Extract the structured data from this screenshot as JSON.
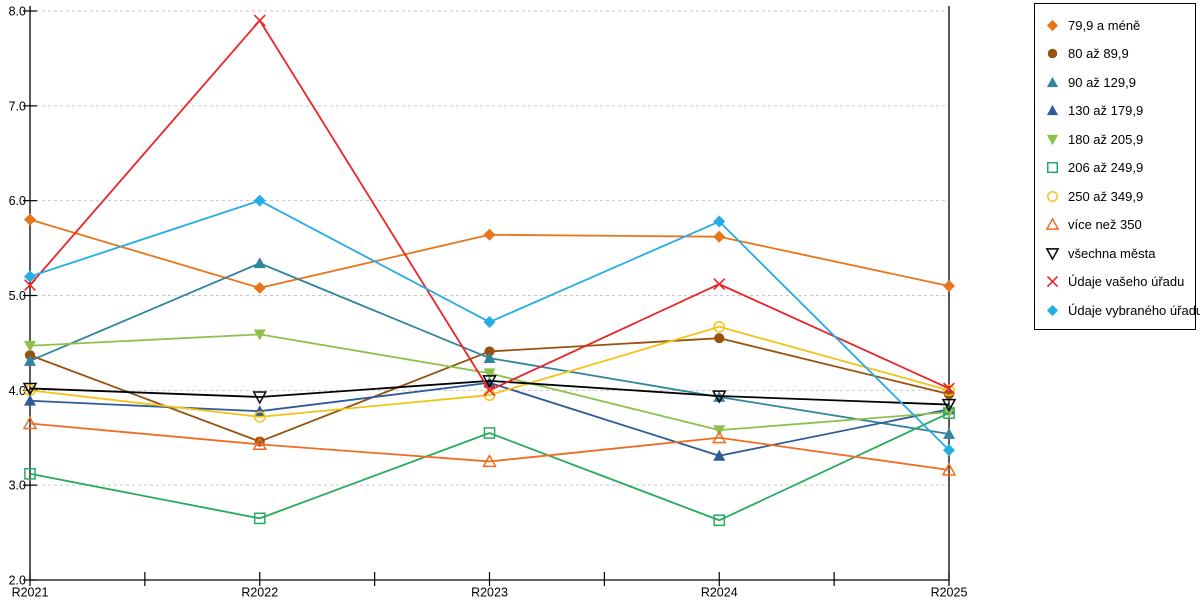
{
  "chart_data": {
    "type": "line",
    "title": "",
    "xlabel": "",
    "ylabel": "",
    "categories": [
      "R2021",
      "R2022",
      "R2023",
      "R2024",
      "R2025"
    ],
    "y_tick_labels": [
      "8.0",
      "7.0",
      "6.0",
      "5.0",
      "4.0",
      "3.0",
      "2.0"
    ],
    "ylim": [
      2.0,
      8.0
    ],
    "y_step": 1.0,
    "grid": "horizontal-dashed",
    "legend_position": "right",
    "colors": {
      "gridline": "#c7c7c7",
      "axis": "#000000",
      "background": "#ffffff"
    },
    "series": [
      {
        "name": "79,9 a méně",
        "marker": "diamond",
        "style": "solid",
        "color": "#E8751A",
        "values": [
          5.8,
          5.08,
          5.64,
          5.62,
          5.1
        ]
      },
      {
        "name": "80 až 89,9",
        "marker": "circle",
        "style": "solid",
        "color": "#98510F",
        "values": [
          4.37,
          3.46,
          4.41,
          4.55,
          3.96
        ]
      },
      {
        "name": "90 až 129,9",
        "marker": "triangle-up",
        "style": "solid",
        "color": "#31859C",
        "values": [
          4.31,
          5.34,
          4.34,
          3.93,
          3.54
        ]
      },
      {
        "name": "130 až 179,9",
        "marker": "triangle-up",
        "style": "solid",
        "color": "#2F5B96",
        "values": [
          3.89,
          3.78,
          4.08,
          3.31,
          3.8
        ]
      },
      {
        "name": "180 až 205,9",
        "marker": "triangle-down",
        "style": "solid",
        "color": "#8FC04D",
        "values": [
          4.47,
          4.59,
          4.18,
          3.58,
          3.77
        ]
      },
      {
        "name": "206 až 249,9",
        "marker": "square",
        "style": "open",
        "color": "#27AA5E",
        "values": [
          3.12,
          2.65,
          3.55,
          2.63,
          3.76
        ]
      },
      {
        "name": "250 až 349,9",
        "marker": "circle",
        "style": "open",
        "color": "#F3C317",
        "values": [
          4.0,
          3.72,
          3.95,
          4.67,
          4.0
        ]
      },
      {
        "name": "více než 350",
        "marker": "triangle-up",
        "style": "open",
        "color": "#F06C22",
        "values": [
          3.65,
          3.43,
          3.25,
          3.5,
          3.16
        ]
      },
      {
        "name": "všechna města",
        "marker": "triangle-down",
        "style": "open",
        "color": "#000000",
        "values": [
          4.02,
          3.93,
          4.1,
          3.94,
          3.85
        ]
      },
      {
        "name": "Údaje vašeho úřadu",
        "marker": "x",
        "style": "open",
        "color": "#EB2428",
        "values": [
          5.11,
          7.9,
          4.0,
          5.12,
          4.02
        ]
      },
      {
        "name": "Údaje vybraného úřadu",
        "marker": "diamond",
        "style": "solid",
        "color": "#25ACE3",
        "values": [
          5.2,
          6.0,
          4.72,
          5.78,
          3.37
        ]
      }
    ]
  }
}
